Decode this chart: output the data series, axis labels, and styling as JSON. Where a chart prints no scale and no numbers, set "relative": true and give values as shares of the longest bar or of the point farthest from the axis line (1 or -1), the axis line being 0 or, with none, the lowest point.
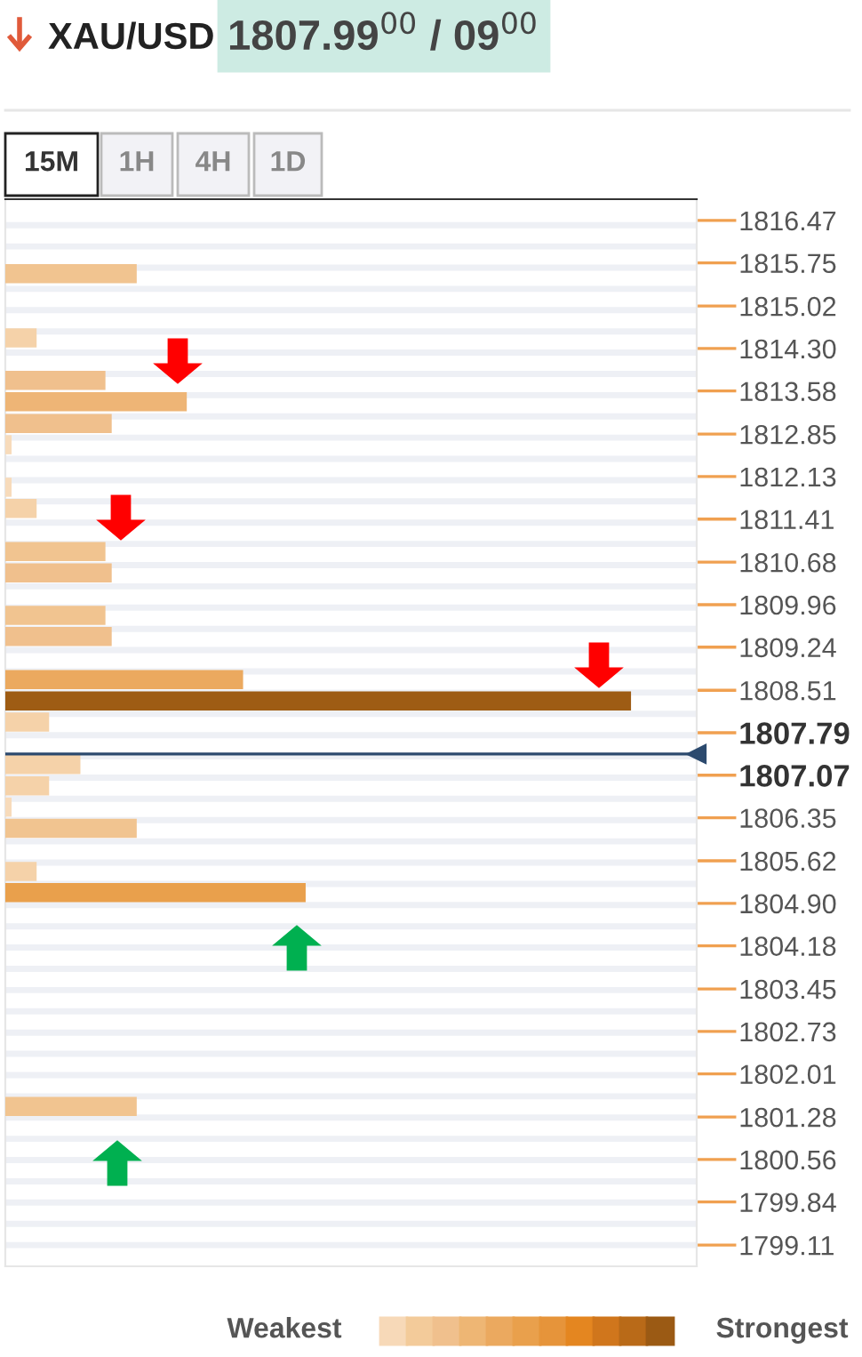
{
  "chart_data": {
    "type": "bar",
    "orientation": "horizontal",
    "relative": true,
    "title": "XAU/USD",
    "subtitle": "1807.99$^{00}$ / 09$^{00}$",
    "x": [
      1815.57,
      1814.48,
      1813.76,
      1813.4,
      1813.03,
      1812.67,
      1811.95,
      1811.59,
      1810.86,
      1810.5,
      1809.78,
      1809.42,
      1808.69,
      1808.33,
      1807.97,
      1807.25,
      1806.89,
      1806.53,
      1806.17,
      1805.44,
      1805.08,
      1801.46
    ],
    "values": [
      0.21,
      0.05,
      0.16,
      0.29,
      0.17,
      0.01,
      0.01,
      0.05,
      0.16,
      0.17,
      0.16,
      0.17,
      0.38,
      1,
      0.07,
      0.12,
      0.07,
      0.01,
      0.21,
      0.05,
      0.48,
      0.21
    ],
    "colors": [
      "#f1c490",
      "#f5d2a9",
      "#f0c08d",
      "#eeb576",
      "#f0c08d",
      "#f7dbbb",
      "#f7dbbb",
      "#f5d2a9",
      "#f1c490",
      "#f0c08d",
      "#f1c490",
      "#f0c08d",
      "#eba95f",
      "#9e5c14",
      "#f5d2a9",
      "#f5d2a9",
      "#f5d2a9",
      "#f7dbbb",
      "#f1c490",
      "#f5d2a9",
      "#e9a04c",
      "#f1c490"
    ],
    "ylim": [
      1798.75,
      1816.83
    ],
    "yticks": [
      1816.47,
      1815.75,
      1815.02,
      {
        "value": 1814.3,
        "label": "1814.30"
      },
      1813.58,
      1812.85,
      1812.13,
      1811.41,
      1810.68,
      1809.96,
      1809.24,
      1808.51,
      1807.79,
      1807.07,
      1806.35,
      1805.62,
      {
        "value": 1804.9,
        "label": "1804.90"
      },
      1804.18,
      1803.45,
      1802.73,
      1802.01,
      1801.28,
      1800.56,
      1799.84,
      1799.11
    ],
    "ref_lines": [
      {
        "axis": "y",
        "value": 1807.43,
        "color": "#2c4a6e"
      }
    ],
    "grid": "y",
    "annotations": [
      "15M",
      "1H",
      "4H",
      "1D",
      "Weakest",
      "Strongest"
    ]
  }
}
